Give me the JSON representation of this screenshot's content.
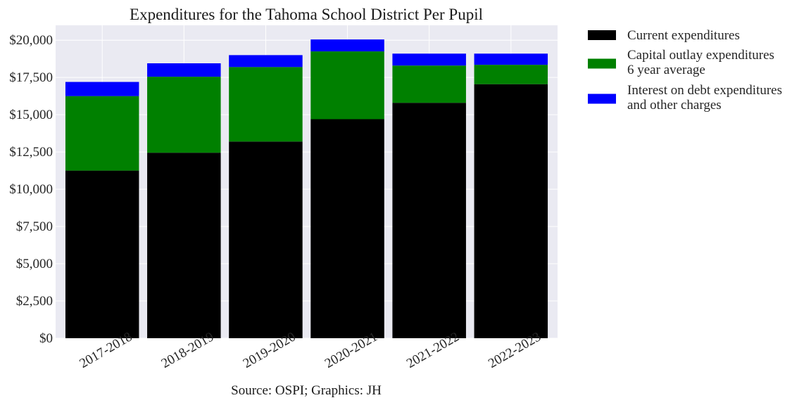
{
  "chart_data": {
    "type": "bar",
    "stacked": true,
    "title": "Expenditures for the Tahoma School District Per Pupil",
    "caption": "Source: OSPI; Graphics: JH",
    "categories": [
      "2017-2018",
      "2018-2019",
      "2019-2020",
      "2020-2021",
      "2021-2022",
      "2022-2023"
    ],
    "series": [
      {
        "name": "Current expenditures",
        "color": "#000000",
        "values": [
          11250,
          12450,
          13200,
          14700,
          15800,
          17050
        ]
      },
      {
        "name": "Capital outlay expenditures\n6 year average",
        "color": "#008000",
        "values": [
          5000,
          5100,
          5000,
          4550,
          2500,
          1300
        ]
      },
      {
        "name": "Interest on debt expenditures\nand other charges",
        "color": "#0000ff",
        "values": [
          950,
          900,
          800,
          800,
          800,
          750
        ]
      }
    ],
    "xlabel": "",
    "ylabel": "",
    "ylim": [
      0,
      21000
    ],
    "yticks": [
      0,
      2500,
      5000,
      7500,
      10000,
      12500,
      15000,
      17500,
      20000
    ],
    "ytick_labels": [
      "$0",
      "$2,500",
      "$5,000",
      "$7,500",
      "$10,000",
      "$12,500",
      "$15,000",
      "$17,500",
      "$20,000"
    ],
    "x_tick_rotation": 30,
    "grid": true,
    "legend_position": "outside-top-right",
    "background_color": "#eaeaf2"
  }
}
